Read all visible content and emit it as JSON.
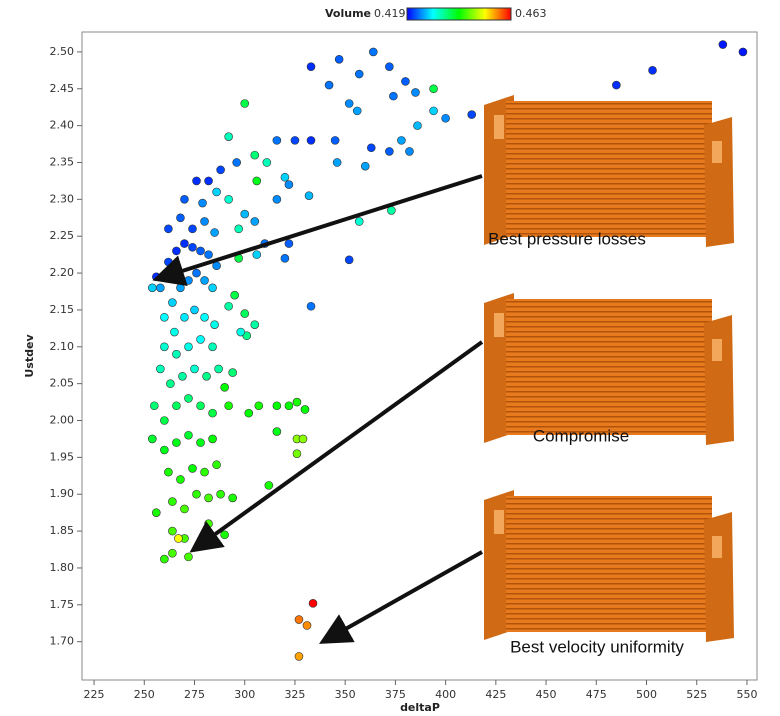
{
  "chart_data": {
    "type": "scatter",
    "x_label": "deltaP",
    "y_label": "Ustdev",
    "colorbar": {
      "label": "Volume",
      "min": 0.419,
      "max": 0.463
    },
    "xlim": [
      219,
      555
    ],
    "ylim": [
      1.648,
      2.527
    ],
    "xticks": [
      225,
      250,
      275,
      300,
      325,
      350,
      375,
      400,
      425,
      450,
      475,
      500,
      525,
      550
    ],
    "yticks": [
      {
        "value": 1.7,
        "label": "1.70"
      },
      1.75,
      {
        "value": 1.8,
        "label": "1.80"
      },
      1.85,
      {
        "value": 1.9,
        "label": "1.90"
      },
      1.95,
      {
        "value": 2.0,
        "label": "2.00"
      },
      2.05,
      {
        "value": 2.1,
        "label": "2.10"
      },
      2.15,
      {
        "value": 2.2,
        "label": "2.20"
      },
      2.25,
      {
        "value": 2.3,
        "label": "2.30"
      },
      2.35,
      {
        "value": 2.4,
        "label": "2.40"
      },
      2.45,
      {
        "value": 2.5,
        "label": "2.50"
      }
    ],
    "annotations": [
      "Best pressure losses",
      "Compromise",
      "Best velocity uniformity"
    ],
    "series": [
      {
        "x": [
          538,
          548,
          503,
          485,
          333,
          347,
          364,
          357,
          372,
          380,
          394,
          342,
          352,
          356,
          374,
          385,
          394,
          400,
          413,
          386,
          378,
          372,
          382,
          363,
          345,
          346,
          360,
          333,
          325,
          316,
          300,
          292,
          305,
          311,
          320,
          322,
          332,
          316,
          306,
          296,
          288,
          282,
          276,
          270,
          279,
          286,
          292,
          300,
          305,
          297,
          310,
          322,
          320,
          333,
          352,
          357,
          373,
          306,
          297,
          295,
          300,
          301,
          305,
          298,
          292,
          290,
          294,
          292,
          256,
          254,
          258,
          262,
          266,
          270,
          274,
          278,
          282,
          286,
          262,
          268,
          274,
          280,
          285,
          264,
          268,
          272,
          276,
          280,
          284,
          260,
          265,
          270,
          275,
          280,
          285,
          260,
          266,
          272,
          278,
          284,
          258,
          263,
          269,
          275,
          281,
          287,
          255,
          260,
          266,
          272,
          278,
          284,
          254,
          260,
          266,
          272,
          278,
          284,
          262,
          268,
          274,
          280,
          286,
          264,
          270,
          276,
          282,
          288,
          294,
          256,
          264,
          270,
          282,
          290,
          267,
          264,
          260,
          272,
          302,
          307,
          316,
          316,
          322,
          326,
          330,
          326,
          329,
          326,
          312,
          334,
          327,
          331,
          327
        ],
        "values": [
          2.51,
          2.5,
          2.475,
          2.455,
          2.48,
          2.49,
          2.5,
          2.47,
          2.48,
          2.46,
          2.45,
          2.455,
          2.43,
          2.42,
          2.44,
          2.445,
          2.42,
          2.41,
          2.415,
          2.4,
          2.38,
          2.365,
          2.365,
          2.37,
          2.38,
          2.35,
          2.345,
          2.38,
          2.38,
          2.38,
          2.43,
          2.385,
          2.36,
          2.35,
          2.33,
          2.32,
          2.305,
          2.3,
          2.325,
          2.35,
          2.34,
          2.325,
          2.325,
          2.3,
          2.295,
          2.31,
          2.3,
          2.28,
          2.27,
          2.26,
          2.24,
          2.24,
          2.22,
          2.155,
          2.218,
          2.27,
          2.285,
          2.225,
          2.22,
          2.17,
          2.145,
          2.115,
          2.13,
          2.12,
          2.155,
          2.045,
          2.065,
          2.02,
          2.195,
          2.18,
          2.18,
          2.215,
          2.23,
          2.24,
          2.235,
          2.23,
          2.225,
          2.21,
          2.26,
          2.275,
          2.26,
          2.27,
          2.255,
          2.16,
          2.18,
          2.19,
          2.2,
          2.19,
          2.18,
          2.14,
          2.12,
          2.14,
          2.15,
          2.14,
          2.13,
          2.1,
          2.09,
          2.1,
          2.11,
          2.1,
          2.07,
          2.05,
          2.06,
          2.07,
          2.06,
          2.07,
          2.02,
          2.0,
          2.02,
          2.03,
          2.02,
          2.01,
          1.975,
          1.96,
          1.97,
          1.98,
          1.97,
          1.975,
          1.93,
          1.92,
          1.935,
          1.93,
          1.94,
          1.89,
          1.88,
          1.9,
          1.895,
          1.9,
          1.895,
          1.875,
          1.85,
          1.84,
          1.86,
          1.845,
          1.84,
          1.82,
          1.812,
          1.815,
          2.01,
          2.02,
          1.985,
          2.02,
          2.02,
          2.025,
          2.015,
          1.975,
          1.975,
          1.955,
          1.912,
          1.752,
          1.73,
          1.722,
          1.68
        ],
        "color_values": [
          0.42,
          0.42,
          0.421,
          0.421,
          0.421,
          0.423,
          0.424,
          0.424,
          0.423,
          0.423,
          0.438,
          0.424,
          0.425,
          0.426,
          0.424,
          0.425,
          0.428,
          0.425,
          0.422,
          0.427,
          0.426,
          0.423,
          0.425,
          0.422,
          0.423,
          0.426,
          0.426,
          0.421,
          0.422,
          0.424,
          0.438,
          0.433,
          0.436,
          0.433,
          0.428,
          0.425,
          0.427,
          0.425,
          0.44,
          0.424,
          0.422,
          0.421,
          0.421,
          0.423,
          0.425,
          0.428,
          0.432,
          0.427,
          0.426,
          0.433,
          0.424,
          0.423,
          0.424,
          0.424,
          0.422,
          0.432,
          0.434,
          0.428,
          0.438,
          0.438,
          0.437,
          0.435,
          0.434,
          0.431,
          0.434,
          0.441,
          0.436,
          0.442,
          0.421,
          0.428,
          0.426,
          0.422,
          0.421,
          0.421,
          0.422,
          0.423,
          0.424,
          0.425,
          0.422,
          0.423,
          0.422,
          0.425,
          0.426,
          0.428,
          0.426,
          0.425,
          0.424,
          0.426,
          0.428,
          0.43,
          0.431,
          0.429,
          0.428,
          0.43,
          0.431,
          0.432,
          0.433,
          0.431,
          0.43,
          0.433,
          0.433,
          0.435,
          0.434,
          0.432,
          0.435,
          0.434,
          0.436,
          0.438,
          0.437,
          0.436,
          0.437,
          0.438,
          0.439,
          0.44,
          0.44,
          0.439,
          0.44,
          0.441,
          0.442,
          0.442,
          0.441,
          0.443,
          0.443,
          0.443,
          0.444,
          0.443,
          0.444,
          0.443,
          0.442,
          0.442,
          0.444,
          0.444,
          0.444,
          0.442,
          0.452,
          0.444,
          0.443,
          0.444,
          0.441,
          0.442,
          0.44,
          0.441,
          0.441,
          0.442,
          0.441,
          0.447,
          0.447,
          0.446,
          0.442,
          0.463,
          0.458,
          0.457,
          0.456
        ]
      }
    ]
  }
}
